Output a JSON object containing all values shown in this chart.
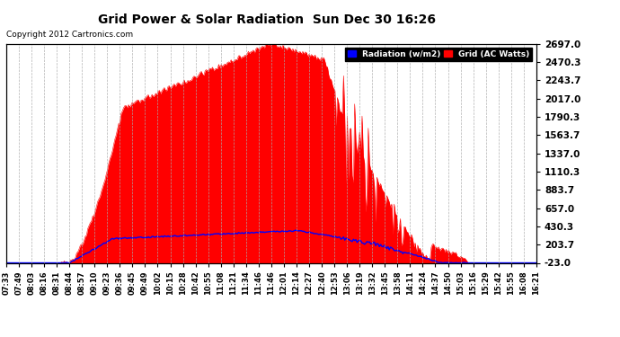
{
  "title": "Grid Power & Solar Radiation  Sun Dec 30 16:26",
  "copyright": "Copyright 2012 Cartronics.com",
  "legend_radiation": "Radiation (w/m2)",
  "legend_grid": "Grid (AC Watts)",
  "yticks": [
    -23.0,
    203.7,
    430.3,
    657.0,
    883.7,
    1110.3,
    1337.0,
    1563.7,
    1790.3,
    2017.0,
    2243.7,
    2470.3,
    2697.0
  ],
  "ymin": -23.0,
  "ymax": 2697.0,
  "bg_color": "#ffffff",
  "plot_bg_color": "#ffffff",
  "grid_color": "#aaaaaa",
  "radiation_color": "#0000ff",
  "grid_ac_color": "#ff0000",
  "title_color": "#000000",
  "xtick_labels": [
    "07:33",
    "07:49",
    "08:03",
    "08:16",
    "08:31",
    "08:44",
    "08:57",
    "09:10",
    "09:23",
    "09:36",
    "09:45",
    "09:49",
    "10:02",
    "10:15",
    "10:28",
    "10:42",
    "10:55",
    "11:08",
    "11:21",
    "11:34",
    "11:46",
    "11:46",
    "12:01",
    "12:14",
    "12:27",
    "12:40",
    "12:53",
    "13:06",
    "13:19",
    "13:32",
    "13:45",
    "13:58",
    "14:11",
    "14:24",
    "14:37",
    "14:50",
    "15:03",
    "15:16",
    "15:29",
    "15:42",
    "15:55",
    "16:08",
    "16:21"
  ]
}
